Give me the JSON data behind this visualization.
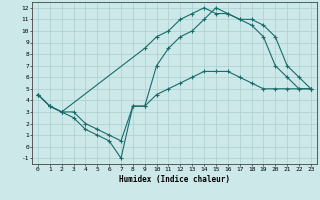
{
  "xlabel": "Humidex (Indice chaleur)",
  "xlim": [
    -0.5,
    23.5
  ],
  "ylim": [
    -1.5,
    12.5
  ],
  "xticks": [
    0,
    1,
    2,
    3,
    4,
    5,
    6,
    7,
    8,
    9,
    10,
    11,
    12,
    13,
    14,
    15,
    16,
    17,
    18,
    19,
    20,
    21,
    22,
    23
  ],
  "yticks": [
    -1,
    0,
    1,
    2,
    3,
    4,
    5,
    6,
    7,
    8,
    9,
    10,
    11,
    12
  ],
  "background_color": "#cce8e8",
  "grid_color": "#aacfcf",
  "line_color": "#1a6b6b",
  "line1_x": [
    0,
    1,
    2,
    3,
    4,
    5,
    6,
    7,
    8,
    9,
    10,
    11,
    12,
    13,
    14,
    15,
    16,
    17,
    18,
    19,
    20,
    21,
    22,
    23
  ],
  "line1_y": [
    4.5,
    3.5,
    3.0,
    2.5,
    1.5,
    1.0,
    0.5,
    -1.0,
    3.5,
    3.5,
    4.5,
    5.0,
    5.5,
    6.0,
    6.5,
    6.5,
    6.5,
    6.0,
    5.5,
    5.0,
    5.0,
    5.0,
    5.0,
    5.0
  ],
  "line2_x": [
    0,
    1,
    2,
    9,
    10,
    11,
    12,
    13,
    14,
    15,
    16,
    17,
    18,
    19,
    20,
    21,
    22,
    23
  ],
  "line2_y": [
    4.5,
    3.5,
    3.0,
    8.5,
    9.5,
    10.0,
    11.0,
    11.5,
    12.0,
    11.5,
    11.5,
    11.0,
    11.0,
    10.5,
    9.5,
    7.0,
    6.0,
    5.0
  ],
  "line3_x": [
    0,
    1,
    2,
    3,
    4,
    5,
    6,
    7,
    8,
    9,
    10,
    11,
    12,
    13,
    14,
    15,
    16,
    17,
    18,
    19,
    20,
    21,
    22,
    23
  ],
  "line3_y": [
    4.5,
    3.5,
    3.0,
    3.0,
    2.0,
    1.5,
    1.0,
    0.5,
    3.5,
    3.5,
    7.0,
    8.5,
    9.5,
    10.0,
    11.0,
    12.0,
    11.5,
    11.0,
    10.5,
    9.5,
    7.0,
    6.0,
    5.0,
    5.0
  ]
}
